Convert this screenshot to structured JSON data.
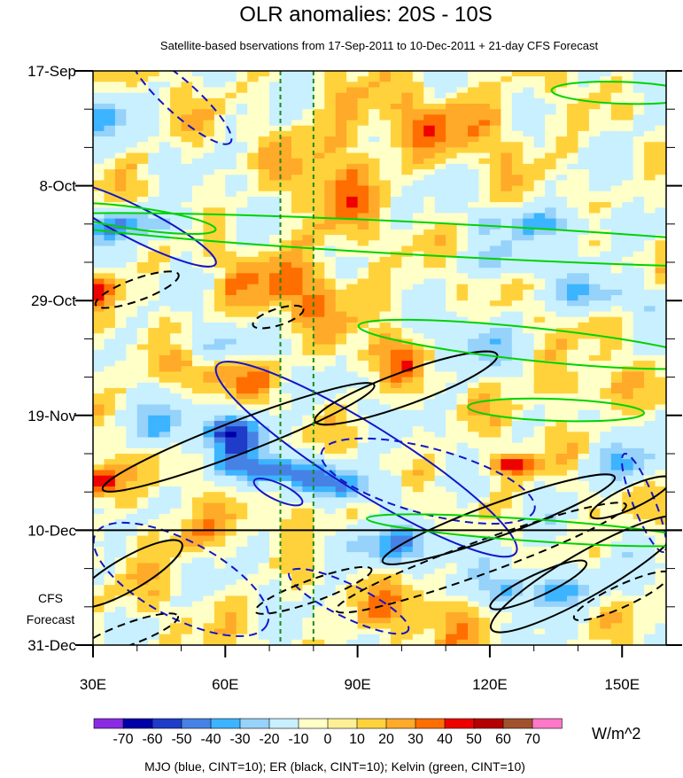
{
  "chart_data": {
    "type": "heatmap",
    "title": "OLR anomalies: 20S - 10S",
    "subtitle": "Satellite-based bservations from 17-Sep-2011 to 10-Dec-2011 + 21-day CFS Forecast",
    "xlabel": "",
    "ylabel": "",
    "x_range_deg": [
      30,
      160
    ],
    "x_ticks": [
      "30E",
      "60E",
      "90E",
      "120E",
      "150E"
    ],
    "x_tick_values": [
      30,
      60,
      90,
      120,
      150
    ],
    "y_range_days": [
      0,
      105
    ],
    "y_ticks": [
      "17-Sep",
      "8-Oct",
      "29-Oct",
      "19-Nov",
      "10-Dec",
      "31-Dec"
    ],
    "y_tick_days": [
      0,
      21,
      42,
      63,
      84,
      105
    ],
    "forecast_start_day": 84,
    "forecast_label_line1": "CFS",
    "forecast_label_line2": "Forecast",
    "reference_lon_lines": [
      72.5,
      80
    ],
    "colorbar": {
      "labels": [
        "-70",
        "-60",
        "-50",
        "-40",
        "-30",
        "-20",
        "-10",
        "0",
        "10",
        "20",
        "30",
        "40",
        "50",
        "60",
        "70"
      ],
      "colors": [
        "#8a2be2",
        "#0000a8",
        "#1e3cc8",
        "#4682e6",
        "#3cb4ff",
        "#96d2fa",
        "#c8f0ff",
        "#ffffc8",
        "#fff096",
        "#ffd23c",
        "#ffaa28",
        "#ff6e00",
        "#ee0000",
        "#b40000",
        "#a0522d",
        "#ff78c8"
      ],
      "unit": "W/m^2"
    },
    "footer": "MJO (blue, CINT=10); ER (black, CINT=10); Kelvin (green, CINT=10)",
    "overlays": {
      "mjo_color": "#1414c8",
      "er_color": "#000000",
      "kelvin_color": "#00d200",
      "mjo_negative": [
        {
          "lon": 40,
          "day": 28,
          "rlon": 20,
          "rday": 3,
          "angle": 27
        },
        {
          "lon": 92,
          "day": 71,
          "rlon": 40,
          "rday": 6,
          "angle": 32
        },
        {
          "lon": 72,
          "day": 77,
          "rlon": 6,
          "rday": 1.5,
          "angle": 25
        }
      ],
      "mjo_positive": [
        {
          "lon": 50,
          "day": 5,
          "rlon": 15,
          "rday": 3,
          "angle": 42
        },
        {
          "lon": 106,
          "day": 75,
          "rlon": 25,
          "rday": 6,
          "angle": 15
        },
        {
          "lon": 50,
          "day": 93,
          "rlon": 22,
          "rday": 7,
          "angle": 28
        },
        {
          "lon": 88,
          "day": 97,
          "rlon": 15,
          "rday": 3,
          "angle": 26
        },
        {
          "lon": 155,
          "day": 79,
          "rlon": 12,
          "rday": 2,
          "angle": 68
        }
      ],
      "er_negative": [
        {
          "lon": 63,
          "day": 67,
          "rlon": 33,
          "rday": 3,
          "angle": -21
        },
        {
          "lon": 101,
          "day": 58,
          "rlon": 22,
          "rday": 3,
          "angle": -20
        },
        {
          "lon": 122,
          "day": 82,
          "rlon": 28,
          "rday": 3,
          "angle": -20
        },
        {
          "lon": 142,
          "day": 92,
          "rlon": 25,
          "rday": 4,
          "angle": -30
        },
        {
          "lon": 131,
          "day": 94,
          "rlon": 12,
          "rday": 2,
          "angle": -25
        },
        {
          "lon": 152,
          "day": 78,
          "rlon": 10,
          "rday": 2,
          "angle": -25
        },
        {
          "lon": 38,
          "day": 92,
          "rlon": 14,
          "rday": 3,
          "angle": -30
        }
      ],
      "er_positive": [
        {
          "lon": 118,
          "day": 89,
          "rlon": 35,
          "rday": 3,
          "angle": -20
        },
        {
          "lon": 80,
          "day": 95,
          "rlon": 14,
          "rday": 2,
          "angle": -20
        },
        {
          "lon": 40,
          "day": 40,
          "rlon": 10,
          "rday": 2,
          "angle": -20
        },
        {
          "lon": 72,
          "day": 45,
          "rlon": 6,
          "rday": 1.5,
          "angle": -18
        },
        {
          "lon": 38,
          "day": 103,
          "rlon": 12,
          "rday": 2,
          "angle": -20
        },
        {
          "lon": 150,
          "day": 96,
          "rlon": 12,
          "rday": 2,
          "angle": -25
        }
      ],
      "kelvin": [
        {
          "lon": 112,
          "day": 31,
          "rlon": 95,
          "rday": 3,
          "angle": 3
        },
        {
          "lon": 130,
          "day": 50,
          "rlon": 40,
          "rday": 3,
          "angle": 6
        },
        {
          "lon": 135,
          "day": 62,
          "rlon": 20,
          "rday": 2,
          "angle": 2
        },
        {
          "lon": 40,
          "day": 27,
          "rlon": 18,
          "rday": 2,
          "angle": 8
        },
        {
          "lon": 150,
          "day": 4,
          "rlon": 16,
          "rday": 2,
          "angle": 2
        },
        {
          "lon": 130,
          "day": 84,
          "rlon": 38,
          "rday": 2,
          "angle": 4
        }
      ]
    }
  }
}
